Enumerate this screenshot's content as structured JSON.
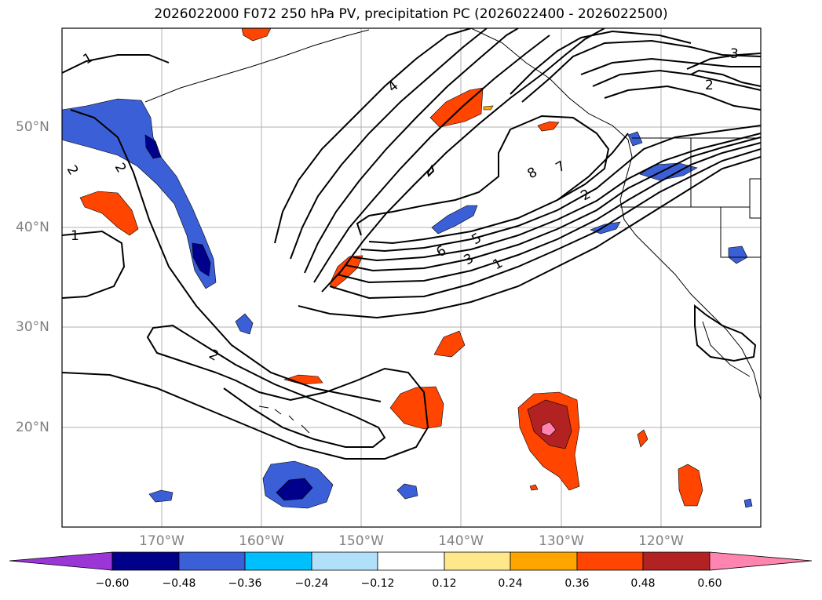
{
  "title": "2026022000 F072 250 hPa PV, precipitation PC (2026022400 - 2026022500)",
  "lat_labels": [
    "50°N",
    "40°N",
    "30°N",
    "20°N"
  ],
  "lon_labels": [
    "170°W",
    "160°W",
    "150°W",
    "140°W",
    "130°W",
    "120°W"
  ],
  "contour_labels": [
    "1",
    "2",
    "1",
    "2",
    "2",
    "4",
    "8",
    "7",
    "2",
    "6",
    "5",
    "3",
    "1",
    "3",
    "2"
  ],
  "colorbar": {
    "ticks": [
      "−0.60",
      "−0.48",
      "−0.36",
      "−0.24",
      "−0.12",
      "0.12",
      "0.24",
      "0.36",
      "0.48",
      "0.60"
    ],
    "colors": [
      "#9a36d6",
      "#00008b",
      "#3a5fd6",
      "#00bfff",
      "#b0e0fa",
      "#ffffff",
      "#ffe88c",
      "#ffa500",
      "#ff4500",
      "#b22222",
      "#ff85b0"
    ]
  }
}
